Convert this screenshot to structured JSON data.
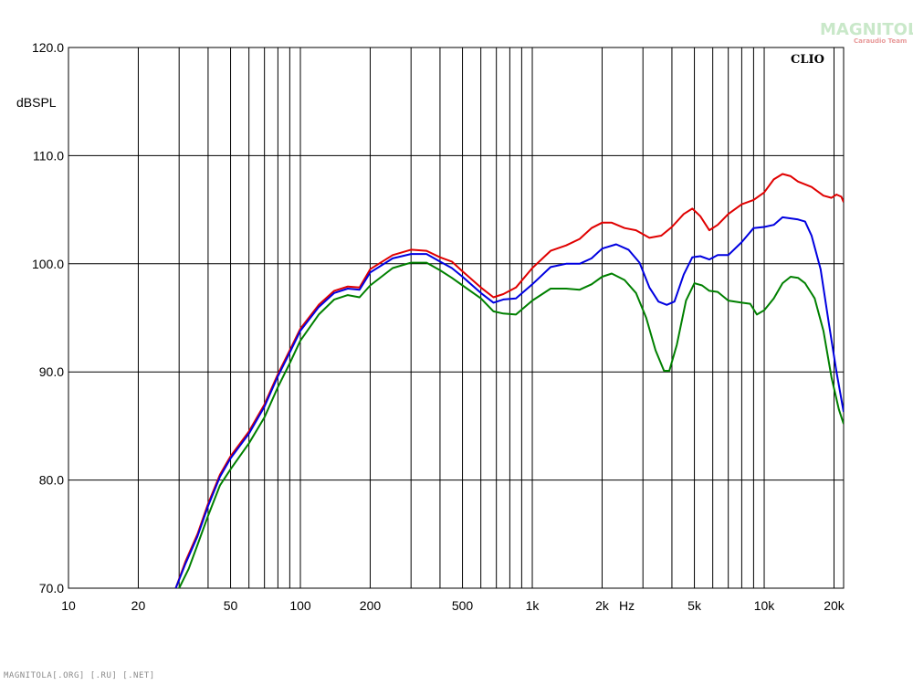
{
  "chart_data": {
    "type": "line",
    "ylabel": "dBSPL",
    "xunit_label": "Hz",
    "brand": "CLIO",
    "xscale": "log",
    "xlim": [
      10,
      22000
    ],
    "ylim": [
      70,
      120
    ],
    "grid": true,
    "x_ticks": [
      {
        "value": 10,
        "label": "10"
      },
      {
        "value": 20,
        "label": "20"
      },
      {
        "value": 50,
        "label": "50"
      },
      {
        "value": 100,
        "label": "100"
      },
      {
        "value": 200,
        "label": "200"
      },
      {
        "value": 500,
        "label": "500"
      },
      {
        "value": 1000,
        "label": "1k"
      },
      {
        "value": 2000,
        "label": "2k"
      },
      {
        "value": 5000,
        "label": "5k"
      },
      {
        "value": 10000,
        "label": "10k"
      },
      {
        "value": 20000,
        "label": "20k"
      }
    ],
    "y_ticks": [
      {
        "value": 70,
        "label": "70.0"
      },
      {
        "value": 80,
        "label": "80.0"
      },
      {
        "value": 90,
        "label": "90.0"
      },
      {
        "value": 100,
        "label": "100.0"
      },
      {
        "value": 110,
        "label": "110.0"
      },
      {
        "value": 120,
        "label": "120.0"
      }
    ],
    "series": [
      {
        "color": "#e00000",
        "points": [
          [
            29,
            70
          ],
          [
            32,
            72.5
          ],
          [
            36,
            75
          ],
          [
            40,
            77.8
          ],
          [
            45,
            80.5
          ],
          [
            50,
            82.2
          ],
          [
            60,
            84.5
          ],
          [
            70,
            87
          ],
          [
            80,
            89.8
          ],
          [
            90,
            92
          ],
          [
            100,
            94
          ],
          [
            120,
            96.2
          ],
          [
            140,
            97.5
          ],
          [
            160,
            97.9
          ],
          [
            180,
            97.8
          ],
          [
            200,
            99.5
          ],
          [
            250,
            100.8
          ],
          [
            300,
            101.3
          ],
          [
            350,
            101.2
          ],
          [
            400,
            100.6
          ],
          [
            450,
            100.2
          ],
          [
            500,
            99.3
          ],
          [
            600,
            97.8
          ],
          [
            680,
            96.9
          ],
          [
            750,
            97.2
          ],
          [
            850,
            97.8
          ],
          [
            1000,
            99.6
          ],
          [
            1200,
            101.2
          ],
          [
            1400,
            101.7
          ],
          [
            1600,
            102.3
          ],
          [
            1800,
            103.3
          ],
          [
            2000,
            103.8
          ],
          [
            2200,
            103.8
          ],
          [
            2500,
            103.3
          ],
          [
            2800,
            103.1
          ],
          [
            3200,
            102.4
          ],
          [
            3600,
            102.6
          ],
          [
            4000,
            103.4
          ],
          [
            4500,
            104.6
          ],
          [
            4900,
            105.1
          ],
          [
            5300,
            104.4
          ],
          [
            5800,
            103.1
          ],
          [
            6300,
            103.6
          ],
          [
            7000,
            104.6
          ],
          [
            8000,
            105.5
          ],
          [
            9000,
            105.9
          ],
          [
            10000,
            106.6
          ],
          [
            11000,
            107.8
          ],
          [
            12000,
            108.3
          ],
          [
            13000,
            108.1
          ],
          [
            14000,
            107.6
          ],
          [
            16000,
            107.1
          ],
          [
            18000,
            106.3
          ],
          [
            19500,
            106.1
          ],
          [
            20500,
            106.4
          ],
          [
            21500,
            106.2
          ],
          [
            22000,
            105.7
          ]
        ]
      },
      {
        "color": "#0000e0",
        "points": [
          [
            29,
            70
          ],
          [
            32,
            72.3
          ],
          [
            36,
            74.8
          ],
          [
            40,
            77.6
          ],
          [
            45,
            80.3
          ],
          [
            50,
            82
          ],
          [
            60,
            84.3
          ],
          [
            70,
            86.8
          ],
          [
            80,
            89.6
          ],
          [
            90,
            91.8
          ],
          [
            100,
            93.8
          ],
          [
            120,
            96
          ],
          [
            140,
            97.3
          ],
          [
            160,
            97.7
          ],
          [
            180,
            97.6
          ],
          [
            200,
            99.2
          ],
          [
            250,
            100.5
          ],
          [
            300,
            100.9
          ],
          [
            350,
            100.9
          ],
          [
            400,
            100.2
          ],
          [
            450,
            99.6
          ],
          [
            500,
            98.8
          ],
          [
            600,
            97.3
          ],
          [
            680,
            96.4
          ],
          [
            750,
            96.7
          ],
          [
            850,
            96.8
          ],
          [
            1000,
            98.1
          ],
          [
            1200,
            99.7
          ],
          [
            1400,
            100
          ],
          [
            1600,
            100
          ],
          [
            1800,
            100.5
          ],
          [
            2000,
            101.4
          ],
          [
            2300,
            101.8
          ],
          [
            2600,
            101.3
          ],
          [
            2900,
            100.1
          ],
          [
            3200,
            97.8
          ],
          [
            3500,
            96.5
          ],
          [
            3800,
            96.2
          ],
          [
            4100,
            96.5
          ],
          [
            4500,
            99
          ],
          [
            4900,
            100.6
          ],
          [
            5300,
            100.7
          ],
          [
            5800,
            100.4
          ],
          [
            6300,
            100.8
          ],
          [
            7000,
            100.8
          ],
          [
            8000,
            102
          ],
          [
            9000,
            103.3
          ],
          [
            10000,
            103.4
          ],
          [
            11000,
            103.6
          ],
          [
            12000,
            104.3
          ],
          [
            13000,
            104.2
          ],
          [
            14000,
            104.1
          ],
          [
            15000,
            103.9
          ],
          [
            16000,
            102.6
          ],
          [
            17500,
            99.5
          ],
          [
            19000,
            94.5
          ],
          [
            20500,
            90
          ],
          [
            22000,
            86.3
          ]
        ]
      },
      {
        "color": "#008000",
        "points": [
          [
            30,
            70
          ],
          [
            33,
            71.8
          ],
          [
            36,
            74
          ],
          [
            40,
            76.7
          ],
          [
            45,
            79.5
          ],
          [
            50,
            81
          ],
          [
            60,
            83.4
          ],
          [
            70,
            85.8
          ],
          [
            80,
            88.6
          ],
          [
            90,
            90.8
          ],
          [
            100,
            92.9
          ],
          [
            120,
            95.3
          ],
          [
            140,
            96.7
          ],
          [
            160,
            97.1
          ],
          [
            180,
            96.9
          ],
          [
            200,
            98
          ],
          [
            250,
            99.6
          ],
          [
            300,
            100.1
          ],
          [
            350,
            100.1
          ],
          [
            400,
            99.4
          ],
          [
            450,
            98.7
          ],
          [
            500,
            98
          ],
          [
            600,
            96.8
          ],
          [
            680,
            95.6
          ],
          [
            750,
            95.4
          ],
          [
            850,
            95.3
          ],
          [
            1000,
            96.6
          ],
          [
            1200,
            97.7
          ],
          [
            1400,
            97.7
          ],
          [
            1600,
            97.6
          ],
          [
            1800,
            98.1
          ],
          [
            2000,
            98.8
          ],
          [
            2200,
            99.1
          ],
          [
            2500,
            98.5
          ],
          [
            2800,
            97.3
          ],
          [
            3100,
            95
          ],
          [
            3400,
            92
          ],
          [
            3700,
            90.1
          ],
          [
            3900,
            90.1
          ],
          [
            4200,
            92.5
          ],
          [
            4600,
            96.6
          ],
          [
            5000,
            98.2
          ],
          [
            5400,
            98
          ],
          [
            5800,
            97.5
          ],
          [
            6300,
            97.4
          ],
          [
            7000,
            96.6
          ],
          [
            8000,
            96.4
          ],
          [
            8700,
            96.3
          ],
          [
            9300,
            95.3
          ],
          [
            10000,
            95.7
          ],
          [
            11000,
            96.8
          ],
          [
            12000,
            98.2
          ],
          [
            13000,
            98.8
          ],
          [
            14000,
            98.7
          ],
          [
            15000,
            98.2
          ],
          [
            16500,
            96.8
          ],
          [
            18000,
            93.8
          ],
          [
            19500,
            89.5
          ],
          [
            21000,
            86.5
          ],
          [
            22000,
            85.2
          ]
        ]
      }
    ]
  },
  "watermark": {
    "main": "MAGNITOLA",
    "sub": "Caraudio Team"
  },
  "footer": {
    "text": "MAGNITOLA[.ORG] [.RU] [.NET]"
  }
}
